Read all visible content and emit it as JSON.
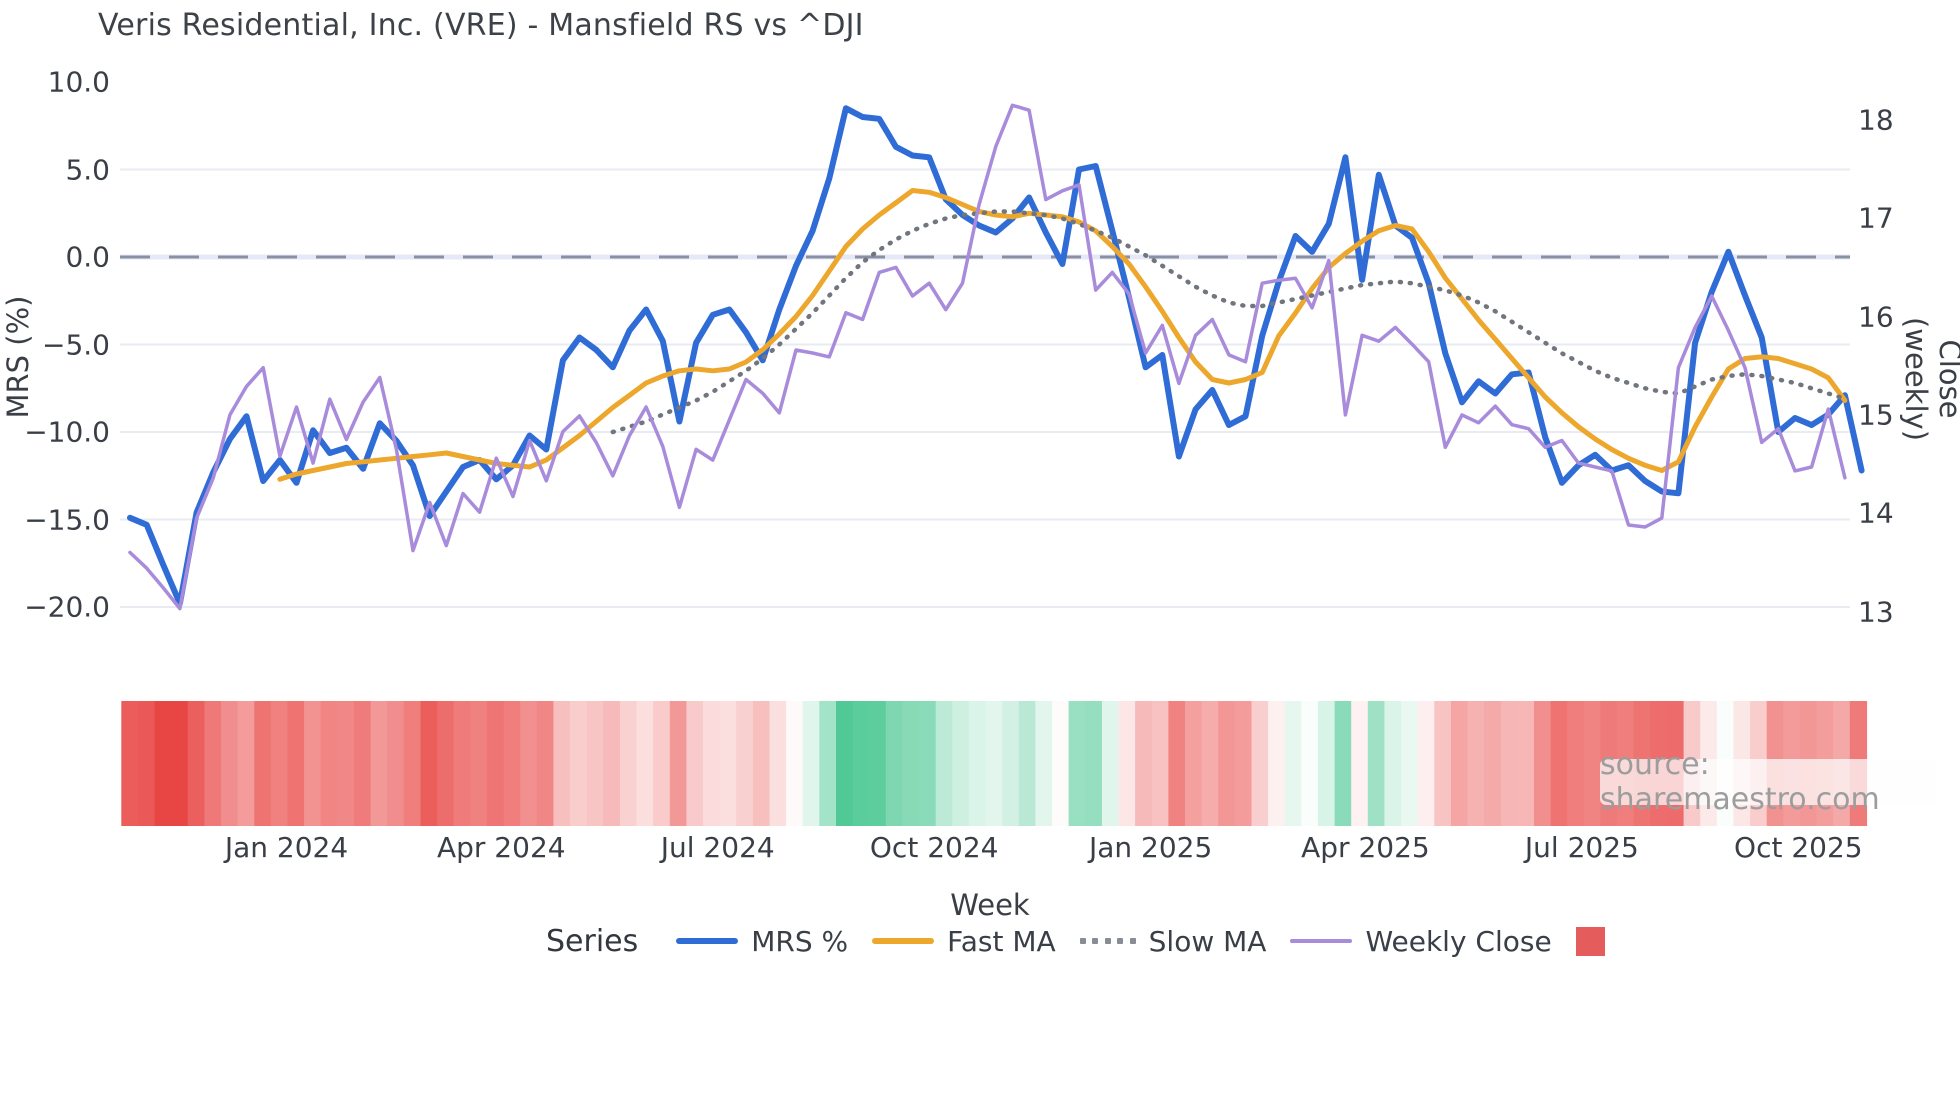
{
  "title": "Veris Residential, Inc. (VRE) - Mansfield RS vs ^DJI",
  "watermark": "source: sharemaestro.com",
  "axes": {
    "left_title": "MRS (%)",
    "right_title": "Close (weekly)",
    "x_title": "Week",
    "left_tick_labels": [
      "10.0",
      "5.0",
      "0.0",
      "−5.0",
      "−10.0",
      "−15.0",
      "−20.0"
    ],
    "left_tick_values": [
      10,
      5,
      0,
      -5,
      -10,
      -15,
      -20
    ],
    "right_tick_labels": [
      "18",
      "17",
      "16",
      "15",
      "14",
      "13"
    ],
    "right_tick_values": [
      18,
      17,
      16,
      15,
      14,
      13
    ],
    "x_tick_labels": [
      "Jan 2024",
      "Apr 2024",
      "Jul 2024",
      "Oct 2024",
      "Jan 2025",
      "Apr 2025",
      "Jul 2025",
      "Oct 2025"
    ],
    "x_tick_weeks": [
      9.4,
      22.3,
      35.3,
      48.3,
      61.3,
      74.2,
      87.2,
      100.2
    ]
  },
  "legend": {
    "series_label": "Series",
    "items": [
      {
        "label": "MRS %",
        "color": "#2f6cd6",
        "style": "line"
      },
      {
        "label": "Fast MA",
        "color": "#eca72c",
        "style": "line"
      },
      {
        "label": "Slow MA",
        "color": "#878c95",
        "style": "dots"
      },
      {
        "label": "Weekly Close",
        "color": "#a98bdb",
        "style": "line"
      }
    ],
    "heatmap_swatch_color": "#e45c5c"
  },
  "chart_data": {
    "type": "line",
    "title": "Veris Residential, Inc. (VRE) - Mansfield RS vs ^DJI",
    "xlabel": "Week",
    "ylabel_left": "MRS (%)",
    "ylabel_right": "Close (weekly)",
    "ylim_left": [
      -22.5,
      11.5
    ],
    "ylim_right": [
      12.6,
      18.6
    ],
    "n_weeks": 104,
    "x_range_weeks": [
      0,
      103
    ],
    "zero_reference_line": 0,
    "grid": "horizontal-light",
    "legend_position": "bottom",
    "series": [
      {
        "name": "MRS %",
        "axis": "left",
        "color": "#2f6cd6",
        "line_style": "solid",
        "width": 6,
        "values": [
          -14.9,
          -15.3,
          -17.6,
          -19.8,
          -14.6,
          -12.3,
          -10.4,
          -9.1,
          -12.8,
          -11.6,
          -12.9,
          -9.9,
          -11.2,
          -10.9,
          -12.1,
          -9.5,
          -10.5,
          -11.9,
          -14.8,
          -13.4,
          -12.0,
          -11.6,
          -12.7,
          -11.9,
          -10.2,
          -11.0,
          -5.9,
          -4.6,
          -5.3,
          -6.3,
          -4.2,
          -3.0,
          -4.8,
          -9.4,
          -4.9,
          -3.3,
          -3.0,
          -4.3,
          -5.9,
          -3.0,
          -0.5,
          1.5,
          4.5,
          8.5,
          8.0,
          7.9,
          6.3,
          5.8,
          5.7,
          3.3,
          2.4,
          1.8,
          1.4,
          2.2,
          3.4,
          1.4,
          -0.4,
          5.0,
          5.2,
          1.5,
          -2.3,
          -6.3,
          -5.6,
          -11.4,
          -8.7,
          -7.6,
          -9.6,
          -9.1,
          -4.5,
          -1.4,
          1.2,
          0.3,
          1.9,
          5.7,
          -1.3,
          4.7,
          1.8,
          1.1,
          -1.5,
          -5.5,
          -8.3,
          -7.1,
          -7.8,
          -6.7,
          -6.6,
          -10.3,
          -12.9,
          -11.9,
          -11.3,
          -12.2,
          -11.9,
          -12.8,
          -13.4,
          -13.5,
          -4.9,
          -2.0,
          0.3,
          -2.2,
          -4.6,
          -10.0,
          -9.2,
          -9.6,
          -9.0,
          -7.9,
          -12.2
        ]
      },
      {
        "name": "Fast MA",
        "axis": "left",
        "color": "#eca72c",
        "line_style": "solid",
        "width": 5,
        "values": [
          null,
          null,
          null,
          null,
          null,
          null,
          null,
          null,
          null,
          -12.7,
          -12.4,
          -12.2,
          -12.0,
          -11.8,
          -11.7,
          -11.6,
          -11.5,
          -11.4,
          -11.3,
          -11.2,
          -11.4,
          -11.6,
          -11.8,
          -11.9,
          -12.0,
          -11.6,
          -10.9,
          -10.2,
          -9.4,
          -8.6,
          -7.9,
          -7.2,
          -6.8,
          -6.5,
          -6.4,
          -6.5,
          -6.4,
          -6.0,
          -5.3,
          -4.4,
          -3.4,
          -2.2,
          -0.8,
          0.6,
          1.6,
          2.4,
          3.1,
          3.8,
          3.7,
          3.4,
          3.0,
          2.6,
          2.4,
          2.3,
          2.5,
          2.4,
          2.3,
          2.0,
          1.5,
          0.6,
          -0.4,
          -1.7,
          -3.1,
          -4.6,
          -6.0,
          -7.0,
          -7.2,
          -7.0,
          -6.6,
          -4.5,
          -3.2,
          -1.8,
          -0.6,
          0.2,
          0.9,
          1.5,
          1.8,
          1.6,
          0.3,
          -1.2,
          -2.4,
          -3.6,
          -4.7,
          -5.8,
          -6.9,
          -8.0,
          -8.9,
          -9.7,
          -10.4,
          -11.0,
          -11.5,
          -11.9,
          -12.2,
          -11.7,
          -9.7,
          -8.0,
          -6.4,
          -5.8,
          -5.7,
          -5.8,
          -6.1,
          -6.4,
          -6.9,
          -8.2
        ]
      },
      {
        "name": "Slow MA",
        "axis": "left",
        "color": "#70757e",
        "line_style": "dotted",
        "width": 4.5,
        "values": [
          null,
          null,
          null,
          null,
          null,
          null,
          null,
          null,
          null,
          null,
          null,
          null,
          null,
          null,
          null,
          null,
          null,
          null,
          null,
          null,
          null,
          null,
          null,
          null,
          null,
          null,
          null,
          null,
          null,
          -10.0,
          -9.7,
          -9.4,
          -9.0,
          -8.6,
          -8.2,
          -7.7,
          -7.1,
          -6.5,
          -5.8,
          -5.0,
          -4.1,
          -3.2,
          -2.2,
          -1.2,
          -0.3,
          0.4,
          1.0,
          1.5,
          1.9,
          2.2,
          2.4,
          2.5,
          2.6,
          2.6,
          2.5,
          2.4,
          2.2,
          1.9,
          1.5,
          1.1,
          0.6,
          0.1,
          -0.5,
          -1.1,
          -1.7,
          -2.2,
          -2.6,
          -2.8,
          -2.8,
          -2.6,
          -2.4,
          -2.2,
          -2.0,
          -1.8,
          -1.6,
          -1.5,
          -1.4,
          -1.5,
          -1.7,
          -1.9,
          -2.2,
          -2.6,
          -3.1,
          -3.7,
          -4.3,
          -4.9,
          -5.5,
          -6.0,
          -6.5,
          -6.9,
          -7.2,
          -7.5,
          -7.7,
          -7.8,
          -7.4,
          -7.0,
          -6.8,
          -6.7,
          -6.8,
          -7.0,
          -7.2,
          -7.5,
          -7.8,
          -8.1
        ]
      },
      {
        "name": "Weekly Close",
        "axis": "right",
        "color": "#a98bdb",
        "line_style": "solid",
        "width": 3.5,
        "values": [
          13.6,
          13.44,
          13.24,
          13.03,
          13.95,
          14.36,
          15.0,
          15.29,
          15.48,
          14.58,
          15.08,
          14.51,
          15.16,
          14.75,
          15.13,
          15.38,
          14.65,
          13.62,
          14.11,
          13.67,
          14.2,
          14.01,
          14.56,
          14.17,
          14.74,
          14.33,
          14.83,
          14.99,
          14.72,
          14.38,
          14.79,
          15.08,
          14.68,
          14.06,
          14.65,
          14.54,
          14.95,
          15.36,
          15.22,
          15.02,
          15.66,
          15.63,
          15.59,
          16.04,
          15.97,
          16.45,
          16.5,
          16.21,
          16.34,
          16.07,
          16.34,
          17.14,
          17.73,
          18.15,
          18.1,
          17.19,
          17.28,
          17.34,
          16.27,
          16.45,
          16.23,
          15.63,
          15.91,
          15.32,
          15.81,
          15.97,
          15.61,
          15.54,
          16.34,
          16.37,
          16.39,
          16.09,
          16.57,
          15.0,
          15.81,
          15.75,
          15.89,
          15.72,
          15.54,
          14.67,
          15.0,
          14.92,
          15.09,
          14.9,
          14.86,
          14.67,
          14.74,
          14.51,
          14.47,
          14.43,
          13.88,
          13.86,
          13.95,
          15.48,
          15.89,
          16.21,
          15.86,
          15.48,
          14.72,
          14.86,
          14.43,
          14.47,
          15.06,
          14.36
        ]
      }
    ],
    "heatmap_strip": {
      "description": "weekly diverging color strip under plot, red = negative MRS, green = positive MRS",
      "derived_from": "MRS %",
      "negative_color": "#e84644",
      "positive_color": "#47c690",
      "neutral_color": "#ffffff",
      "negative_full_scale": -17,
      "positive_full_scale": 9
    }
  }
}
